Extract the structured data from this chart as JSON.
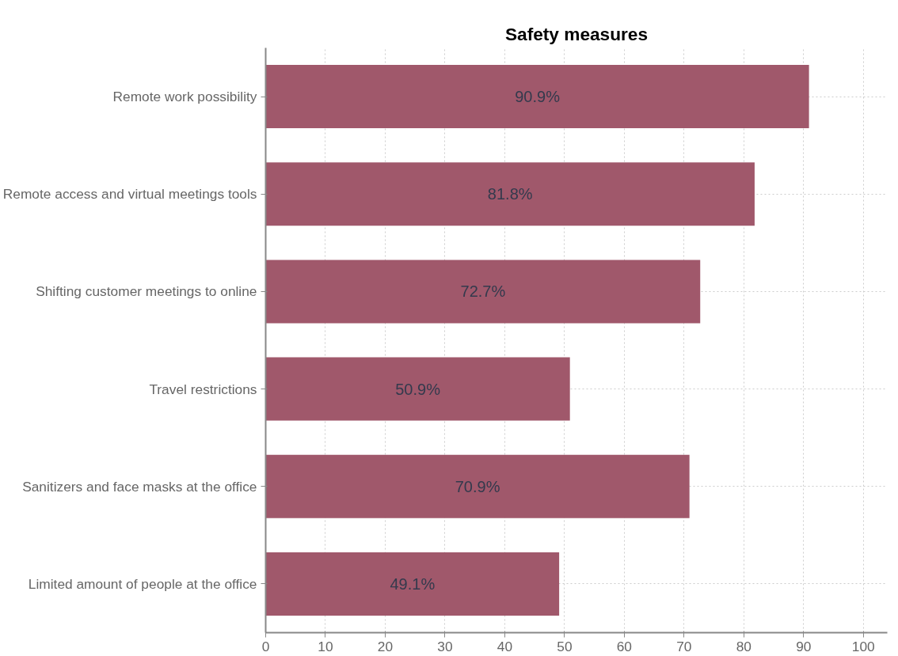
{
  "chart_data": {
    "type": "bar",
    "orientation": "horizontal",
    "title": "Safety measures",
    "categories": [
      "Remote work possibility",
      "Remote access and virtual meetings tools",
      "Shifting customer meetings to online",
      "Travel restrictions",
      "Sanitizers and face masks at the office",
      "Limited amount of people at the office"
    ],
    "values": [
      90.9,
      81.8,
      72.7,
      50.9,
      70.9,
      49.1
    ],
    "value_labels": [
      "90.9%",
      "81.8%",
      "72.7%",
      "50.9%",
      "70.9%",
      "49.1%"
    ],
    "color": "#a0586b",
    "xlim": [
      0,
      104
    ],
    "xticks": [
      0,
      10,
      20,
      30,
      40,
      50,
      60,
      70,
      80,
      90,
      100
    ],
    "grid": true
  }
}
